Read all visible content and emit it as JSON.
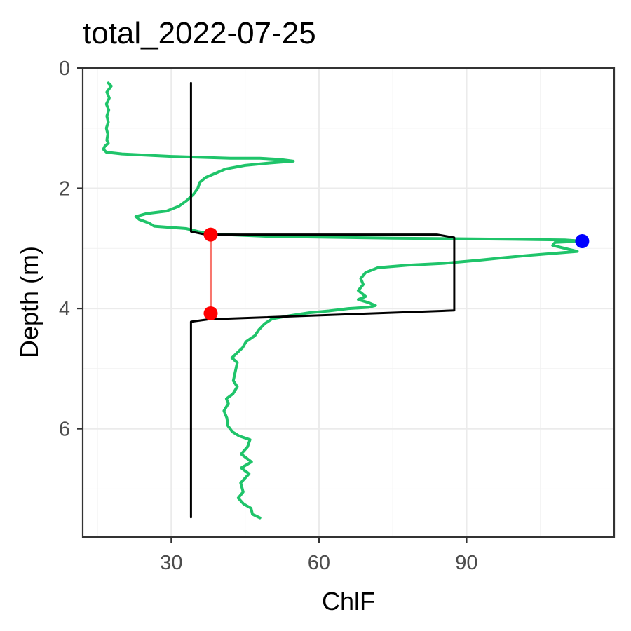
{
  "chart_data": {
    "type": "line",
    "title": "total_2022-07-25",
    "xlabel": "ChlF",
    "ylabel": "Depth (m)",
    "xlim": [
      12,
      120
    ],
    "ylim": [
      0,
      7.8
    ],
    "y_reversed": true,
    "x_ticks": [
      30,
      60,
      90
    ],
    "x_tick_labels": [
      "30",
      "60",
      "90"
    ],
    "y_ticks": [
      0,
      2,
      4,
      6
    ],
    "y_tick_labels": [
      "0",
      "2",
      "4",
      "6"
    ],
    "grid": true,
    "series": [
      {
        "role": "profile",
        "color": "#1fc46a",
        "points": [
          [
            17.2,
            0.25
          ],
          [
            17.8,
            0.3
          ],
          [
            16.9,
            0.4
          ],
          [
            17.4,
            0.5
          ],
          [
            16.8,
            0.6
          ],
          [
            17.3,
            0.7
          ],
          [
            16.9,
            0.8
          ],
          [
            17.2,
            0.9
          ],
          [
            16.8,
            1.0
          ],
          [
            17.1,
            1.1
          ],
          [
            16.9,
            1.2
          ],
          [
            17.2,
            1.25
          ],
          [
            16.5,
            1.3
          ],
          [
            16.2,
            1.35
          ],
          [
            16.8,
            1.4
          ],
          [
            20,
            1.43
          ],
          [
            30,
            1.47
          ],
          [
            42,
            1.5
          ],
          [
            48,
            1.5
          ],
          [
            52,
            1.52
          ],
          [
            54.8,
            1.55
          ],
          [
            50,
            1.58
          ],
          [
            45,
            1.62
          ],
          [
            41,
            1.68
          ],
          [
            39,
            1.75
          ],
          [
            37,
            1.82
          ],
          [
            35.8,
            1.9
          ],
          [
            35.4,
            2.0
          ],
          [
            34.5,
            2.1
          ],
          [
            33.2,
            2.2
          ],
          [
            31.5,
            2.3
          ],
          [
            29,
            2.38
          ],
          [
            25,
            2.42
          ],
          [
            22.8,
            2.47
          ],
          [
            23.5,
            2.52
          ],
          [
            25.5,
            2.58
          ],
          [
            26.5,
            2.63
          ],
          [
            33,
            2.67
          ],
          [
            35.5,
            2.72
          ],
          [
            38,
            2.76
          ],
          [
            50,
            2.8
          ],
          [
            75,
            2.83
          ],
          [
            100,
            2.85
          ],
          [
            110,
            2.86
          ],
          [
            113.5,
            2.88
          ],
          [
            108,
            2.9
          ],
          [
            107.5,
            2.95
          ],
          [
            110,
            3.0
          ],
          [
            112.5,
            3.05
          ],
          [
            105,
            3.1
          ],
          [
            102,
            3.12
          ],
          [
            98,
            3.15
          ],
          [
            92,
            3.2
          ],
          [
            85,
            3.25
          ],
          [
            78,
            3.28
          ],
          [
            72,
            3.32
          ],
          [
            69.5,
            3.4
          ],
          [
            68.5,
            3.5
          ],
          [
            69,
            3.6
          ],
          [
            68,
            3.7
          ],
          [
            69.5,
            3.8
          ],
          [
            68,
            3.85
          ],
          [
            70,
            3.9
          ],
          [
            71.5,
            3.95
          ],
          [
            70,
            3.98
          ],
          [
            66,
            4.0
          ],
          [
            62,
            4.04
          ],
          [
            58,
            4.07
          ],
          [
            54,
            4.12
          ],
          [
            50.5,
            4.17
          ],
          [
            49,
            4.25
          ],
          [
            47.8,
            4.35
          ],
          [
            47,
            4.45
          ],
          [
            45.2,
            4.55
          ],
          [
            44.5,
            4.65
          ],
          [
            43.2,
            4.75
          ],
          [
            42.3,
            4.82
          ],
          [
            43.4,
            4.9
          ],
          [
            43,
            5.05
          ],
          [
            42.6,
            5.2
          ],
          [
            43.4,
            5.3
          ],
          [
            42.5,
            5.42
          ],
          [
            41.2,
            5.5
          ],
          [
            41.6,
            5.58
          ],
          [
            40.7,
            5.7
          ],
          [
            41.3,
            5.82
          ],
          [
            41.5,
            5.95
          ],
          [
            42.4,
            6.05
          ],
          [
            43.8,
            6.12
          ],
          [
            46,
            6.18
          ],
          [
            45.5,
            6.3
          ],
          [
            44.2,
            6.42
          ],
          [
            46.3,
            6.55
          ],
          [
            44.2,
            6.65
          ],
          [
            45.8,
            6.75
          ],
          [
            44.1,
            6.9
          ],
          [
            44.6,
            7.05
          ],
          [
            43.6,
            7.15
          ],
          [
            44.7,
            7.25
          ],
          [
            46.2,
            7.32
          ],
          [
            46.5,
            7.42
          ],
          [
            48,
            7.48
          ]
        ]
      },
      {
        "role": "fitted-profile",
        "color": "#000000",
        "points": [
          [
            34,
            0.25
          ],
          [
            34,
            2.72
          ],
          [
            37,
            2.77
          ],
          [
            84,
            2.77
          ],
          [
            87.5,
            2.82
          ],
          [
            87.5,
            4.03
          ],
          [
            85,
            4.04
          ],
          [
            37.5,
            4.18
          ],
          [
            34,
            4.22
          ],
          [
            34,
            7.47
          ]
        ]
      }
    ],
    "layer_range": {
      "color": "#f8766d",
      "x": 38,
      "y_top": 2.77,
      "y_bottom": 4.08
    },
    "points": [
      {
        "x": 38,
        "y": 2.77,
        "color": "#ff0000"
      },
      {
        "x": 38,
        "y": 4.08,
        "color": "#ff0000"
      },
      {
        "x": 113.5,
        "y": 2.88,
        "color": "#0000ff"
      }
    ]
  }
}
